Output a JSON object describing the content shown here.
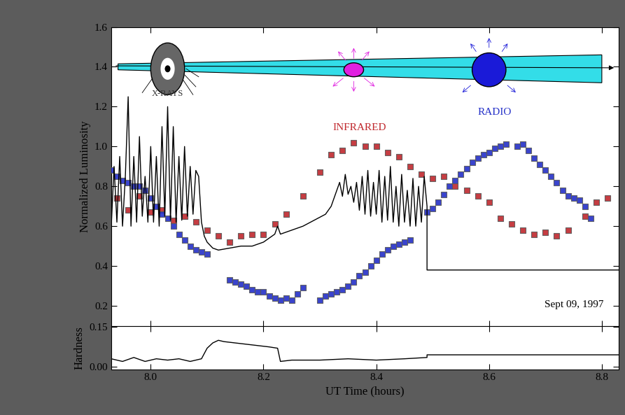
{
  "chart_data": [
    {
      "type": "line",
      "y_label": "Normalized Luminosity",
      "annotations": [
        "Sept 09, 1997"
      ],
      "xlim": [
        7.93,
        8.83
      ],
      "xticks": [
        8.0,
        8.2,
        8.4,
        8.6,
        8.8
      ],
      "ylim": [
        0.1,
        1.6
      ],
      "yticks": [
        0.2,
        0.4,
        0.6,
        0.8,
        1.0,
        1.2,
        1.4,
        1.6
      ],
      "tick_labels": "y",
      "series": [
        {
          "name": "X-RAYS",
          "type": "line",
          "color": "#000000",
          "line_style": "solid",
          "x": [
            7.93,
            7.935,
            7.94,
            7.945,
            7.95,
            7.955,
            7.96,
            7.965,
            7.97,
            7.975,
            7.98,
            7.985,
            7.99,
            7.995,
            8.0,
            8.005,
            8.01,
            8.015,
            8.02,
            8.025,
            8.03,
            8.035,
            8.04,
            8.045,
            8.05,
            8.055,
            8.06,
            8.065,
            8.07,
            8.075,
            8.08,
            8.085,
            8.09,
            8.095,
            8.1,
            8.11,
            8.12,
            8.14,
            8.16,
            8.18,
            8.2,
            8.22,
            8.225,
            8.23,
            8.25,
            8.27,
            8.29,
            8.31,
            8.32,
            8.33,
            8.335,
            8.34,
            8.345,
            8.35,
            8.355,
            8.36,
            8.365,
            8.37,
            8.375,
            8.38,
            8.385,
            8.39,
            8.395,
            8.4,
            8.405,
            8.41,
            8.415,
            8.42,
            8.425,
            8.43,
            8.435,
            8.44,
            8.445,
            8.45,
            8.455,
            8.46,
            8.465,
            8.47,
            8.475,
            8.48,
            8.485,
            8.49,
            8.49,
            8.83
          ],
          "values": [
            0.6,
            0.9,
            0.62,
            0.95,
            0.6,
            0.85,
            1.25,
            0.6,
            0.95,
            0.62,
            1.05,
            0.65,
            0.85,
            0.62,
            1.0,
            0.62,
            0.95,
            0.6,
            1.1,
            0.65,
            1.2,
            0.63,
            1.1,
            0.62,
            0.95,
            0.63,
            1.0,
            0.65,
            0.9,
            0.66,
            0.88,
            0.85,
            0.62,
            0.55,
            0.52,
            0.49,
            0.48,
            0.49,
            0.5,
            0.5,
            0.52,
            0.56,
            0.6,
            0.56,
            0.58,
            0.6,
            0.63,
            0.66,
            0.7,
            0.78,
            0.82,
            0.75,
            0.86,
            0.76,
            0.8,
            0.72,
            0.82,
            0.68,
            0.85,
            0.66,
            0.88,
            0.65,
            0.82,
            0.66,
            0.88,
            0.62,
            0.85,
            0.63,
            0.9,
            0.62,
            0.8,
            0.6,
            0.86,
            0.62,
            0.78,
            0.6,
            0.84,
            0.6,
            0.8,
            0.62,
            0.85,
            0.7,
            0.38,
            0.38
          ]
        },
        {
          "name": "INFRARED",
          "type": "scatter",
          "color": "#c0282d",
          "marker": "square",
          "x": [
            7.94,
            7.96,
            7.98,
            8.0,
            8.02,
            8.04,
            8.06,
            8.08,
            8.1,
            8.12,
            8.14,
            8.16,
            8.18,
            8.2,
            8.22,
            8.24,
            8.27,
            8.3,
            8.32,
            8.34,
            8.36,
            8.38,
            8.4,
            8.42,
            8.44,
            8.46,
            8.48,
            8.5,
            8.52,
            8.54,
            8.56,
            8.58,
            8.6,
            8.62,
            8.64,
            8.66,
            8.68,
            8.7,
            8.72,
            8.74,
            8.77,
            8.79,
            8.81
          ],
          "values": [
            0.74,
            0.68,
            0.75,
            0.67,
            0.68,
            0.63,
            0.65,
            0.62,
            0.58,
            0.55,
            0.52,
            0.55,
            0.56,
            0.56,
            0.61,
            0.66,
            0.75,
            0.87,
            0.96,
            0.98,
            1.02,
            1.0,
            1.0,
            0.97,
            0.95,
            0.9,
            0.86,
            0.84,
            0.85,
            0.8,
            0.78,
            0.75,
            0.72,
            0.64,
            0.61,
            0.58,
            0.56,
            0.57,
            0.55,
            0.58,
            0.65,
            0.72,
            0.74
          ]
        },
        {
          "name": "RADIO",
          "type": "scatter",
          "color": "#2430c8",
          "marker": "square",
          "x": [
            7.93,
            7.94,
            7.95,
            7.96,
            7.97,
            7.98,
            7.99,
            8.0,
            8.01,
            8.02,
            8.03,
            8.04,
            8.05,
            8.06,
            8.07,
            8.08,
            8.09,
            8.1,
            8.14,
            8.15,
            8.16,
            8.17,
            8.18,
            8.19,
            8.2,
            8.21,
            8.22,
            8.23,
            8.24,
            8.25,
            8.26,
            8.27,
            8.3,
            8.31,
            8.32,
            8.33,
            8.34,
            8.35,
            8.36,
            8.37,
            8.38,
            8.39,
            8.4,
            8.41,
            8.42,
            8.43,
            8.44,
            8.45,
            8.46,
            8.49,
            8.5,
            8.51,
            8.52,
            8.53,
            8.54,
            8.55,
            8.56,
            8.57,
            8.58,
            8.59,
            8.6,
            8.61,
            8.62,
            8.63,
            8.65,
            8.66,
            8.67,
            8.68,
            8.69,
            8.7,
            8.71,
            8.72,
            8.73,
            8.74,
            8.75,
            8.76,
            8.77,
            8.78
          ],
          "values": [
            0.88,
            0.85,
            0.83,
            0.82,
            0.8,
            0.8,
            0.78,
            0.74,
            0.7,
            0.66,
            0.64,
            0.6,
            0.56,
            0.53,
            0.5,
            0.48,
            0.47,
            0.46,
            0.33,
            0.32,
            0.31,
            0.3,
            0.28,
            0.27,
            0.27,
            0.25,
            0.24,
            0.23,
            0.24,
            0.23,
            0.26,
            0.29,
            0.23,
            0.25,
            0.26,
            0.27,
            0.28,
            0.3,
            0.32,
            0.35,
            0.37,
            0.4,
            0.43,
            0.46,
            0.48,
            0.5,
            0.51,
            0.52,
            0.53,
            0.67,
            0.69,
            0.72,
            0.76,
            0.8,
            0.83,
            0.86,
            0.89,
            0.92,
            0.94,
            0.96,
            0.97,
            0.99,
            1.0,
            1.01,
            1.0,
            1.01,
            0.98,
            0.94,
            0.91,
            0.88,
            0.85,
            0.82,
            0.78,
            0.75,
            0.74,
            0.73,
            0.7,
            0.64
          ]
        }
      ]
    },
    {
      "type": "line",
      "x_label": "UT Time (hours)",
      "y_label": "Hardness",
      "xlim": [
        7.93,
        8.83
      ],
      "xticks": [
        8.0,
        8.2,
        8.4,
        8.6,
        8.8
      ],
      "ylim": [
        -0.01,
        0.155
      ],
      "yticks": [
        {
          "value": 0.0,
          "label": "0.00"
        },
        {
          "value": 0.15,
          "label": "0.15"
        }
      ],
      "color": "#000000",
      "line_style": "solid",
      "x": [
        7.93,
        7.95,
        7.97,
        7.99,
        8.01,
        8.03,
        8.05,
        8.07,
        8.09,
        8.1,
        8.11,
        8.12,
        8.13,
        8.15,
        8.17,
        8.19,
        8.21,
        8.225,
        8.23,
        8.25,
        8.3,
        8.35,
        8.4,
        8.45,
        8.49,
        8.49,
        8.83
      ],
      "values": [
        0.03,
        0.02,
        0.035,
        0.02,
        0.03,
        0.025,
        0.03,
        0.02,
        0.03,
        0.07,
        0.09,
        0.1,
        0.095,
        0.09,
        0.085,
        0.08,
        0.075,
        0.07,
        0.02,
        0.025,
        0.025,
        0.03,
        0.025,
        0.03,
        0.035,
        0.045,
        0.045
      ]
    }
  ]
}
